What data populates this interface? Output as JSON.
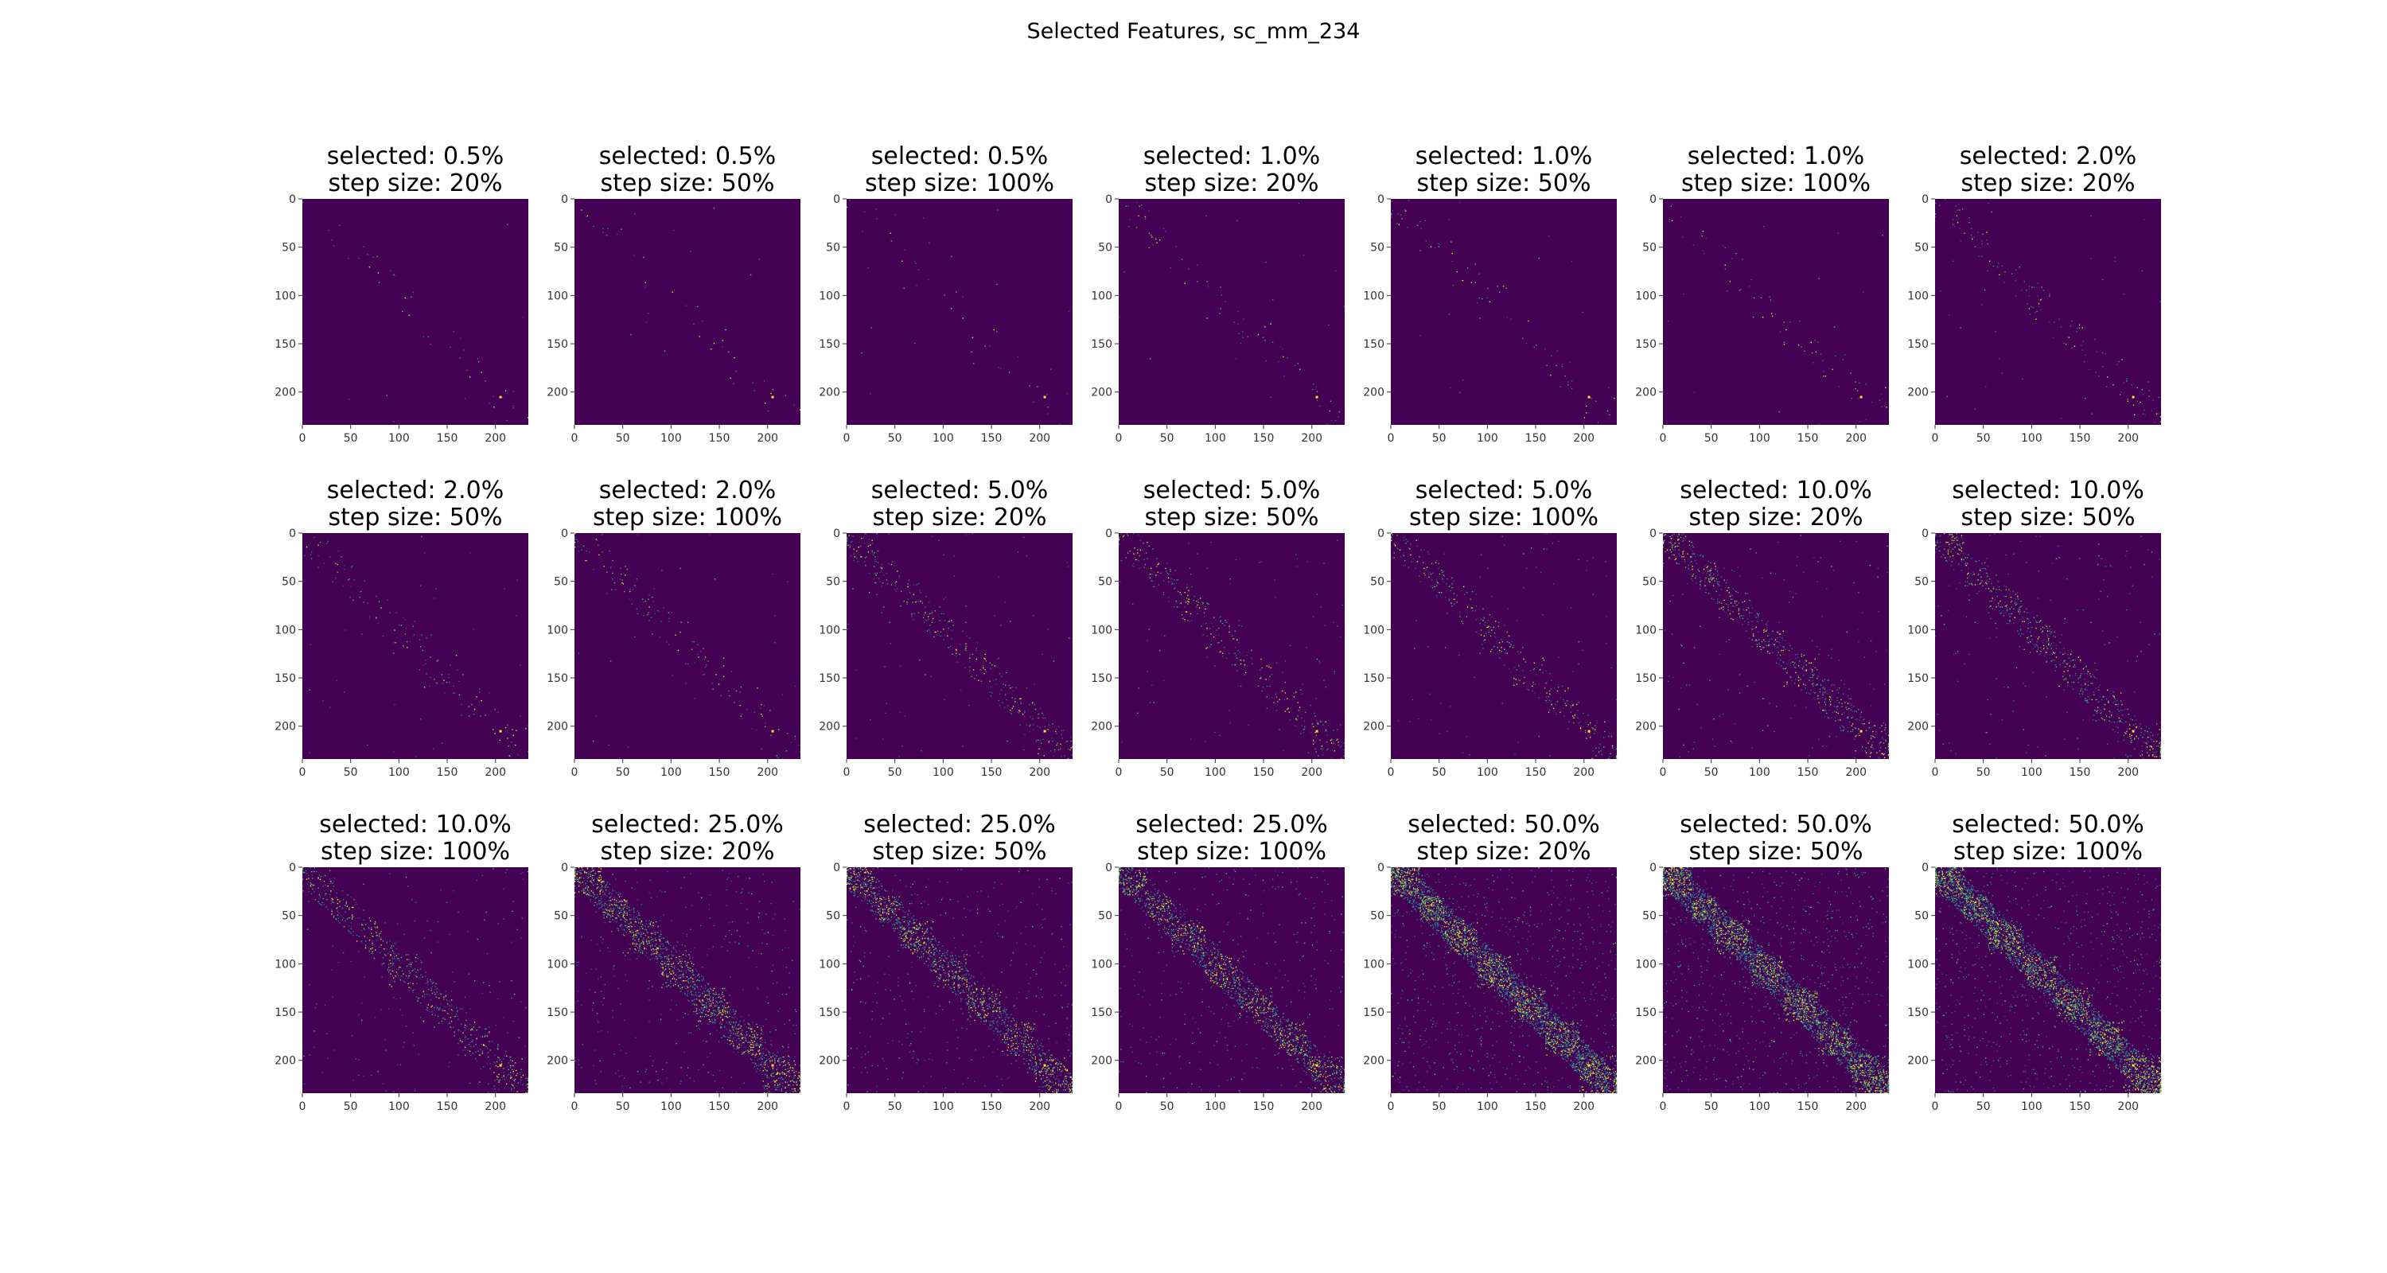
{
  "figure": {
    "title": "Selected Features, sc_mm_234"
  },
  "chart_data": {
    "type": "heatmap",
    "layout": {
      "rows": 3,
      "cols": 7
    },
    "matrix_size": 234,
    "colormap": "viridis",
    "colors": {
      "low": "#440154",
      "mid": "#21918c",
      "high": "#fde725",
      "mid2": "#3b528b",
      "mid3": "#5ec962"
    },
    "x_ticks": [
      0,
      50,
      100,
      150,
      200
    ],
    "y_ticks": [
      0,
      50,
      100,
      150,
      200
    ],
    "xlim": [
      0,
      234
    ],
    "ylim": [
      234,
      0
    ],
    "panels": [
      {
        "title_line1": "selected: 0.5%",
        "title_line2": "step size: 20%",
        "selected_pct": 0.5,
        "step_size_pct": 20
      },
      {
        "title_line1": "selected: 0.5%",
        "title_line2": "step size: 50%",
        "selected_pct": 0.5,
        "step_size_pct": 50
      },
      {
        "title_line1": "selected: 0.5%",
        "title_line2": "step size: 100%",
        "selected_pct": 0.5,
        "step_size_pct": 100
      },
      {
        "title_line1": "selected: 1.0%",
        "title_line2": "step size: 20%",
        "selected_pct": 1.0,
        "step_size_pct": 20
      },
      {
        "title_line1": "selected: 1.0%",
        "title_line2": "step size: 50%",
        "selected_pct": 1.0,
        "step_size_pct": 50
      },
      {
        "title_line1": "selected: 1.0%",
        "title_line2": "step size: 100%",
        "selected_pct": 1.0,
        "step_size_pct": 100
      },
      {
        "title_line1": "selected: 2.0%",
        "title_line2": "step size: 20%",
        "selected_pct": 2.0,
        "step_size_pct": 20
      },
      {
        "title_line1": "selected: 2.0%",
        "title_line2": "step size: 50%",
        "selected_pct": 2.0,
        "step_size_pct": 50
      },
      {
        "title_line1": "selected: 2.0%",
        "title_line2": "step size: 100%",
        "selected_pct": 2.0,
        "step_size_pct": 100
      },
      {
        "title_line1": "selected: 5.0%",
        "title_line2": "step size: 20%",
        "selected_pct": 5.0,
        "step_size_pct": 20
      },
      {
        "title_line1": "selected: 5.0%",
        "title_line2": "step size: 50%",
        "selected_pct": 5.0,
        "step_size_pct": 50
      },
      {
        "title_line1": "selected: 5.0%",
        "title_line2": "step size: 100%",
        "selected_pct": 5.0,
        "step_size_pct": 100
      },
      {
        "title_line1": "selected: 10.0%",
        "title_line2": "step size: 20%",
        "selected_pct": 10.0,
        "step_size_pct": 20
      },
      {
        "title_line1": "selected: 10.0%",
        "title_line2": "step size: 50%",
        "selected_pct": 10.0,
        "step_size_pct": 50
      },
      {
        "title_line1": "selected: 10.0%",
        "title_line2": "step size: 100%",
        "selected_pct": 10.0,
        "step_size_pct": 100
      },
      {
        "title_line1": "selected: 25.0%",
        "title_line2": "step size: 20%",
        "selected_pct": 25.0,
        "step_size_pct": 20
      },
      {
        "title_line1": "selected: 25.0%",
        "title_line2": "step size: 50%",
        "selected_pct": 25.0,
        "step_size_pct": 50
      },
      {
        "title_line1": "selected: 25.0%",
        "title_line2": "step size: 100%",
        "selected_pct": 25.0,
        "step_size_pct": 100
      },
      {
        "title_line1": "selected: 50.0%",
        "title_line2": "step size: 20%",
        "selected_pct": 50.0,
        "step_size_pct": 20
      },
      {
        "title_line1": "selected: 50.0%",
        "title_line2": "step size: 50%",
        "selected_pct": 50.0,
        "step_size_pct": 50
      },
      {
        "title_line1": "selected: 50.0%",
        "title_line2": "step size: 100%",
        "selected_pct": 50.0,
        "step_size_pct": 100
      }
    ]
  }
}
